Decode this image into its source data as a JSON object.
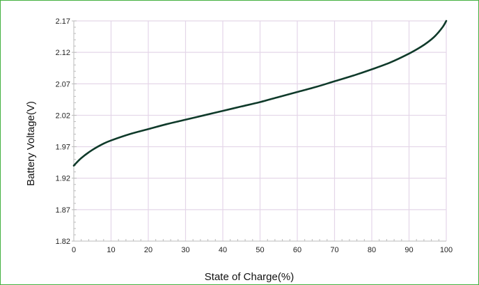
{
  "colors": {
    "frame_border": "#43b040",
    "grid": "#e4d6e8",
    "curve": "#0f3a2a",
    "axis": "#bbbbbb"
  },
  "chart_data": {
    "type": "line",
    "title": "",
    "xlabel": "State of Charge(%)",
    "ylabel": "Battery Voltage(V)",
    "xlim": [
      0,
      100
    ],
    "ylim": [
      1.82,
      2.17
    ],
    "x_ticks": [
      "0",
      "10",
      "20",
      "30",
      "40",
      "50",
      "60",
      "70",
      "80",
      "90",
      "100"
    ],
    "y_ticks": [
      "1.82",
      "1.87",
      "1.92",
      "1.97",
      "2.02",
      "2.07",
      "2.12",
      "2.17"
    ],
    "grid": true,
    "legend": "none",
    "series": [
      {
        "x": [
          0,
          2,
          5,
          8,
          10,
          15,
          20,
          25,
          30,
          35,
          40,
          45,
          50,
          55,
          60,
          65,
          70,
          75,
          80,
          85,
          90,
          93,
          95,
          97,
          99,
          100
        ],
        "y": [
          1.94,
          1.952,
          1.965,
          1.975,
          1.98,
          1.99,
          1.998,
          2.006,
          2.013,
          2.02,
          2.027,
          2.034,
          2.041,
          2.049,
          2.057,
          2.065,
          2.074,
          2.083,
          2.093,
          2.104,
          2.118,
          2.128,
          2.136,
          2.146,
          2.16,
          2.17
        ]
      }
    ]
  }
}
